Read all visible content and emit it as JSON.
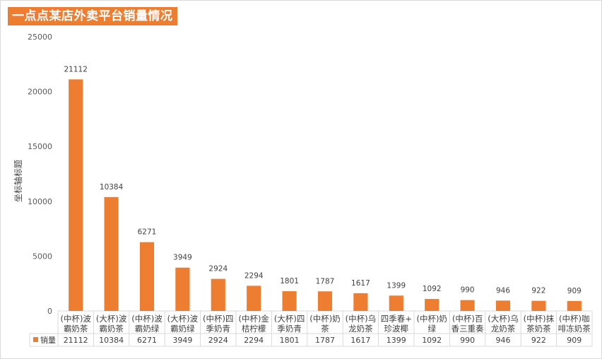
{
  "chart_data": {
    "type": "bar",
    "title": "一点点某店外卖平台销量情况",
    "ylabel": "坐标轴标题",
    "ylim": [
      0,
      25000
    ],
    "yticks": [
      0,
      5000,
      10000,
      15000,
      20000,
      25000
    ],
    "grid": false,
    "legend": "data-table",
    "categories": [
      [
        "(中杯)波",
        "霸奶茶"
      ],
      [
        "(大杯)波",
        "霸奶茶"
      ],
      [
        "(中杯)波",
        "霸奶绿"
      ],
      [
        "(大杯)波",
        "霸奶绿"
      ],
      [
        "(中杯)四",
        "季奶青"
      ],
      [
        "(中杯)金",
        "桔柠檬"
      ],
      [
        "(大杯)四",
        "季奶青"
      ],
      [
        "(中杯)奶",
        "茶"
      ],
      [
        "(中杯)乌",
        "龙奶茶"
      ],
      [
        "四季春+",
        "珍波椰"
      ],
      [
        "(中杯)奶",
        "绿"
      ],
      [
        "(中杯)百",
        "香三重奏"
      ],
      [
        "(大杯)乌",
        "龙奶茶"
      ],
      [
        "(中杯)抹",
        "茶奶茶"
      ],
      [
        "(中杯)咖",
        "啡冻奶茶"
      ]
    ],
    "series": [
      {
        "name": "销量",
        "color": "#ed7d31",
        "values": [
          21112,
          10384,
          6271,
          3949,
          2924,
          2294,
          1801,
          1787,
          1617,
          1399,
          1092,
          990,
          946,
          922,
          909
        ]
      }
    ]
  }
}
